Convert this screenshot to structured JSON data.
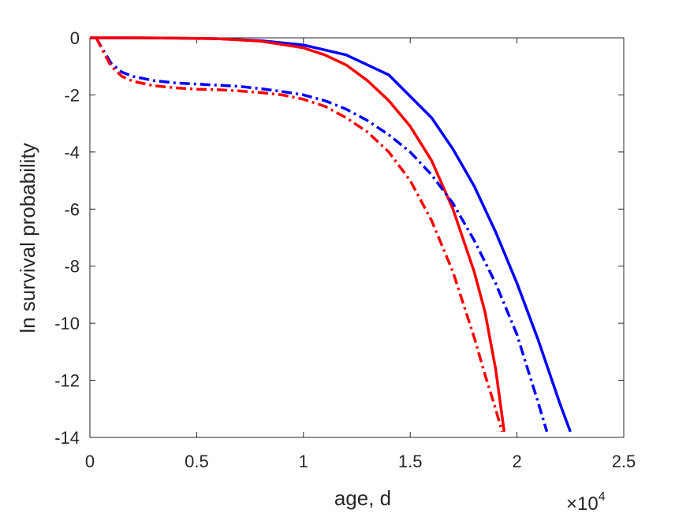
{
  "chart_data": {
    "type": "line",
    "xlabel": "age, d",
    "ylabel": "ln survival probability",
    "x_exponent_label": {
      "base": "×10",
      "power": "4"
    },
    "xlim": [
      0,
      25000
    ],
    "ylim": [
      -14,
      0
    ],
    "x_ticks": [
      0,
      5000,
      10000,
      15000,
      20000,
      25000
    ],
    "x_tick_labels": [
      "0",
      "0.5",
      "1",
      "1.5",
      "2",
      "2.5"
    ],
    "y_ticks": [
      0,
      -2,
      -4,
      -6,
      -8,
      -10,
      -12,
      -14
    ],
    "y_tick_labels": [
      "0",
      "-2",
      "-4",
      "-6",
      "-8",
      "-10",
      "-12",
      "-14"
    ],
    "grid": false,
    "series": [
      {
        "color": "#0000ff",
        "style": "solid",
        "x": [
          0,
          2000,
          4000,
          6000,
          8000,
          10000,
          12000,
          14000,
          16000,
          17000,
          18000,
          19000,
          20000,
          21000,
          22000,
          22500
        ],
        "y": [
          0,
          0,
          -0.01,
          -0.03,
          -0.1,
          -0.25,
          -0.6,
          -1.3,
          -2.8,
          -3.9,
          -5.2,
          -6.8,
          -8.6,
          -10.6,
          -12.8,
          -13.8
        ]
      },
      {
        "color": "#ff0000",
        "style": "solid",
        "x": [
          0,
          2000,
          4000,
          6000,
          8000,
          10000,
          11000,
          12000,
          13000,
          14000,
          15000,
          16000,
          17000,
          18000,
          18500,
          19000,
          19400
        ],
        "y": [
          0,
          0,
          -0.01,
          -0.03,
          -0.12,
          -0.35,
          -0.6,
          -0.95,
          -1.5,
          -2.2,
          -3.1,
          -4.3,
          -6.0,
          -8.2,
          -9.6,
          -11.6,
          -13.8
        ]
      },
      {
        "color": "#0000ff",
        "style": "dashdot",
        "x": [
          300,
          600,
          1000,
          1500,
          2000,
          3000,
          4000,
          5000,
          6000,
          7000,
          8000,
          9000,
          10000,
          11000,
          12000,
          13000,
          14000,
          15000,
          16000,
          17000,
          18000,
          19000,
          20000,
          20500,
          21000,
          21400
        ],
        "y": [
          0,
          -0.4,
          -0.9,
          -1.2,
          -1.35,
          -1.5,
          -1.58,
          -1.62,
          -1.66,
          -1.7,
          -1.78,
          -1.88,
          -2.0,
          -2.2,
          -2.5,
          -2.9,
          -3.4,
          -4.0,
          -4.8,
          -5.8,
          -7.1,
          -8.6,
          -10.4,
          -11.6,
          -12.8,
          -13.8
        ]
      },
      {
        "color": "#ff0000",
        "style": "dashdot",
        "x": [
          300,
          600,
          1000,
          1500,
          2000,
          3000,
          4000,
          5000,
          6000,
          7000,
          8000,
          9000,
          10000,
          11000,
          12000,
          13000,
          14000,
          15000,
          16000,
          17000,
          18000,
          18500,
          19000,
          19300
        ],
        "y": [
          0,
          -0.45,
          -1.0,
          -1.35,
          -1.52,
          -1.68,
          -1.75,
          -1.8,
          -1.82,
          -1.86,
          -1.92,
          -2.0,
          -2.15,
          -2.4,
          -2.8,
          -3.3,
          -4.0,
          -5.0,
          -6.4,
          -8.2,
          -10.5,
          -11.8,
          -13.0,
          -13.8
        ]
      }
    ]
  }
}
